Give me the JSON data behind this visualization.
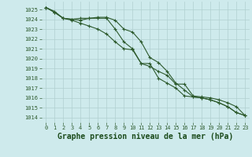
{
  "background_color": "#ceeaec",
  "grid_color": "#b0d0d0",
  "line_color": "#2d5a2d",
  "xlabel": "Graphe pression niveau de la mer (hPa)",
  "xlabel_fontsize": 7,
  "xlabel_color": "#1a4a1a",
  "ylabel_ticks": [
    1014,
    1015,
    1016,
    1017,
    1018,
    1019,
    1020,
    1021,
    1022,
    1023,
    1024,
    1025
  ],
  "xlim": [
    -0.5,
    23.5
  ],
  "ylim": [
    1013.5,
    1025.8
  ],
  "xticks": [
    0,
    1,
    2,
    3,
    4,
    5,
    6,
    7,
    8,
    9,
    10,
    11,
    12,
    13,
    14,
    15,
    16,
    17,
    18,
    19,
    20,
    21,
    22,
    23
  ],
  "series1": [
    1025.2,
    1024.8,
    1024.1,
    1024.0,
    1023.9,
    1024.1,
    1024.1,
    1024.1,
    1023.0,
    1021.7,
    1021.0,
    1019.5,
    1019.5,
    1018.0,
    1017.5,
    1017.0,
    1016.2,
    1016.1,
    1016.0,
    1015.8,
    1015.5,
    1015.1,
    1014.5,
    1014.2
  ],
  "series2": [
    1025.2,
    1024.7,
    1024.1,
    1023.9,
    1023.6,
    1023.3,
    1023.0,
    1022.5,
    1021.7,
    1021.0,
    1020.9,
    1019.5,
    1019.2,
    1018.7,
    1018.3,
    1017.4,
    1017.4,
    1016.2,
    1016.1,
    1016.0,
    1015.8,
    1015.5,
    1015.1,
    1014.2
  ],
  "series3": [
    1025.2,
    1024.7,
    1024.1,
    1024.0,
    1024.1,
    1024.1,
    1024.2,
    1024.2,
    1023.9,
    1023.0,
    1022.7,
    1021.7,
    1020.1,
    1019.6,
    1018.7,
    1017.5,
    1016.8,
    1016.1,
    1016.0,
    1015.8,
    1015.5,
    1015.1,
    1014.5,
    1014.2
  ],
  "tick_fontsize": 5.0,
  "tick_color": "#2d5a2d",
  "marker_size": 3.5,
  "line_width": 0.8
}
